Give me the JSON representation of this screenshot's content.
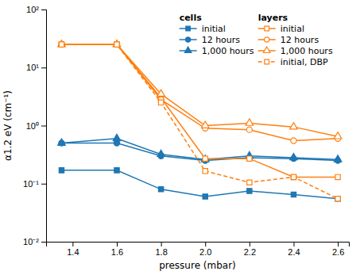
{
  "chart_data": {
    "type": "line",
    "x": [
      1.35,
      1.6,
      1.8,
      2.0,
      2.2,
      2.4,
      2.6
    ],
    "series": [
      {
        "name": "initial",
        "group": "cells",
        "marker": "square",
        "line_style": "solid",
        "values": [
          0.17,
          0.17,
          0.08,
          0.06,
          0.075,
          0.065,
          0.055
        ]
      },
      {
        "name": "12 hours",
        "group": "cells",
        "marker": "circle",
        "line_style": "solid",
        "values": [
          0.5,
          0.5,
          0.3,
          0.25,
          0.28,
          0.27,
          0.25
        ]
      },
      {
        "name": "1,000 hours",
        "group": "cells",
        "marker": "triangle",
        "line_style": "solid",
        "values": [
          0.5,
          0.6,
          0.32,
          0.26,
          0.3,
          0.28,
          0.26
        ]
      },
      {
        "name": "initial",
        "group": "layers",
        "marker": "square-open",
        "line_style": "solid",
        "values": [
          25.0,
          25.0,
          3.0,
          0.27,
          0.27,
          0.13,
          0.13
        ]
      },
      {
        "name": "12 hours",
        "group": "layers",
        "marker": "circle-open",
        "line_style": "solid",
        "values": [
          25.0,
          25.0,
          2.8,
          0.9,
          0.85,
          0.55,
          0.6
        ]
      },
      {
        "name": "1,000 hours",
        "group": "layers",
        "marker": "triangle-open",
        "line_style": "solid",
        "values": [
          25.0,
          25.0,
          3.5,
          1.0,
          1.1,
          0.95,
          0.65
        ]
      },
      {
        "name": "initial, DBP",
        "group": "layers",
        "marker": "square-open",
        "line_style": "dashed",
        "values": [
          25.0,
          25.0,
          2.5,
          0.165,
          0.105,
          0.13,
          0.055
        ]
      }
    ],
    "xlabel": "pressure (mbar)",
    "ylabel": "α1.2 eV (cm⁻¹)",
    "xlim": [
      1.28,
      2.65
    ],
    "ylim": [
      0.01,
      100
    ],
    "xticks": [
      1.4,
      1.6,
      1.8,
      {
        "value": 2.0,
        "label": "2.0"
      },
      2.2,
      2.4,
      2.6
    ],
    "yticks": [
      {
        "value": 0.01,
        "label": "10⁻²"
      },
      {
        "value": 0.1,
        "label": "10⁻¹"
      },
      {
        "value": 1,
        "label": "10⁰"
      },
      {
        "value": 10,
        "label": "10¹"
      },
      {
        "value": 100,
        "label": "10²"
      }
    ],
    "log": "y",
    "grid": false,
    "legend": "upper right"
  }
}
